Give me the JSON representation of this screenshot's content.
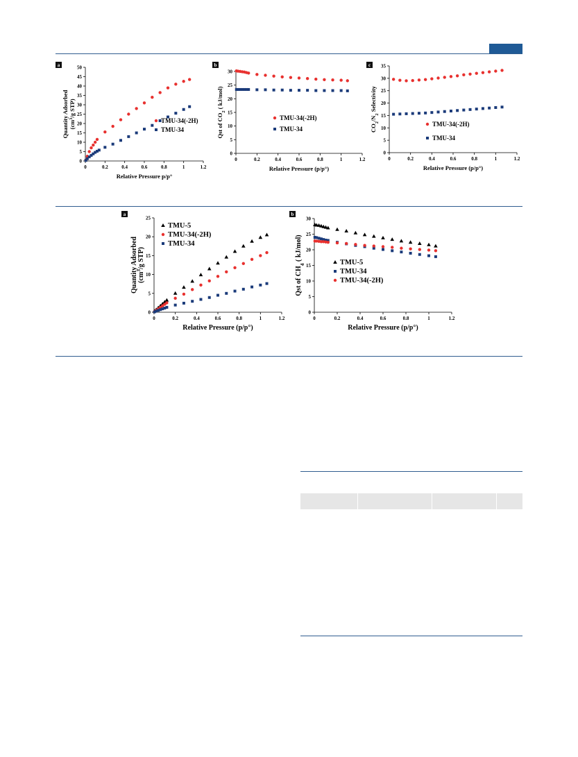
{
  "chart_data": [
    {
      "id": "p1",
      "type": "scatter",
      "panel_label": "a",
      "ylabel": "Quantity Adsorbed",
      "ylabel2": "(cm3/g STP)",
      "xlabel": "Relative Pressure p/p°",
      "xlim": [
        0,
        1.2
      ],
      "ylim": [
        0,
        50
      ],
      "xticks": [
        0,
        0.2,
        0.4,
        0.6,
        0.8,
        1,
        1.2
      ],
      "yticks": [
        0,
        5,
        10,
        15,
        20,
        25,
        30,
        35,
        40,
        45,
        50
      ],
      "legend_placement": "center-right",
      "series": [
        {
          "name": "TMU-34(-2H)",
          "marker": "circle",
          "color": "#e8312f",
          "x": [
            0.005,
            0.02,
            0.04,
            0.06,
            0.08,
            0.1,
            0.12,
            0.2,
            0.28,
            0.36,
            0.44,
            0.52,
            0.6,
            0.68,
            0.76,
            0.84,
            0.92,
            1.0,
            1.06
          ],
          "y": [
            0.5,
            2.5,
            5,
            7,
            8.5,
            10,
            11.5,
            15.5,
            18.5,
            22,
            25,
            28,
            31,
            34,
            36.5,
            39,
            41,
            42.5,
            43.5
          ]
        },
        {
          "name": "TMU-34",
          "marker": "square",
          "color": "#1b3b7a",
          "x": [
            0.005,
            0.02,
            0.04,
            0.06,
            0.08,
            0.1,
            0.12,
            0.14,
            0.2,
            0.28,
            0.36,
            0.44,
            0.52,
            0.6,
            0.68,
            0.76,
            0.84,
            0.92,
            1.0,
            1.06
          ],
          "y": [
            0.3,
            1.2,
            2.2,
            3.0,
            3.8,
            4.6,
            5.2,
            5.8,
            7.3,
            9.0,
            11,
            13,
            15,
            17,
            19,
            21.5,
            23.5,
            25.5,
            27.5,
            29
          ]
        }
      ]
    },
    {
      "id": "p2",
      "type": "scatter",
      "panel_label": "b",
      "ylabel": "Qst of CO2 ( kJ/mol)",
      "xlabel": "Relative Pressure (p/p°)",
      "xlim": [
        0,
        1.2
      ],
      "ylim": [
        0,
        30
      ],
      "xticks": [
        0,
        0.2,
        0.4,
        0.6,
        0.8,
        1,
        1.2
      ],
      "yticks": [
        0,
        5,
        10,
        15,
        20,
        25,
        30
      ],
      "legend_placement": "center",
      "series": [
        {
          "name": "TMU-34(-2H)",
          "marker": "circle",
          "color": "#e8312f",
          "x": [
            0.005,
            0.02,
            0.04,
            0.06,
            0.08,
            0.1,
            0.12,
            0.2,
            0.28,
            0.36,
            0.44,
            0.52,
            0.6,
            0.68,
            0.76,
            0.84,
            0.92,
            1.0,
            1.06
          ],
          "y": [
            30.2,
            30.1,
            30.0,
            29.9,
            29.8,
            29.6,
            29.4,
            28.9,
            28.6,
            28.3,
            28.0,
            27.8,
            27.6,
            27.4,
            27.2,
            27.0,
            26.9,
            26.8,
            26.6
          ]
        },
        {
          "name": "TMU-34",
          "marker": "square",
          "color": "#1b3b7a",
          "x": [
            0.005,
            0.02,
            0.04,
            0.06,
            0.08,
            0.1,
            0.12,
            0.2,
            0.28,
            0.36,
            0.44,
            0.52,
            0.6,
            0.68,
            0.76,
            0.84,
            0.92,
            1.0,
            1.06
          ],
          "y": [
            23.4,
            23.4,
            23.4,
            23.4,
            23.4,
            23.4,
            23.4,
            23.3,
            23.3,
            23.2,
            23.2,
            23.1,
            23.1,
            23.1,
            23.0,
            23.0,
            23.0,
            23.0,
            22.9
          ]
        }
      ]
    },
    {
      "id": "p3",
      "type": "scatter",
      "panel_label": "c",
      "ylabel": "CO2/N2 Selectivity",
      "xlabel": "Relative Pressure (p/p°)",
      "xlim": [
        0,
        1.2
      ],
      "ylim": [
        0,
        35
      ],
      "xticks": [
        0,
        0.2,
        0.4,
        0.6,
        0.8,
        1,
        1.2
      ],
      "yticks": [
        0,
        5,
        10,
        15,
        20,
        25,
        30,
        35
      ],
      "legend_placement": "bottom-left",
      "series": [
        {
          "name": "TMU-34(-2H)",
          "marker": "circle",
          "color": "#e8312f",
          "x": [
            0.04,
            0.1,
            0.16,
            0.22,
            0.28,
            0.34,
            0.4,
            0.46,
            0.52,
            0.58,
            0.64,
            0.7,
            0.76,
            0.82,
            0.88,
            0.94,
            1.0,
            1.06
          ],
          "y": [
            29.6,
            29.2,
            29.0,
            29.1,
            29.3,
            29.5,
            29.8,
            30.1,
            30.4,
            30.7,
            31.0,
            31.4,
            31.7,
            32.0,
            32.3,
            32.6,
            32.9,
            33.2
          ]
        },
        {
          "name": "TMU-34",
          "marker": "square",
          "color": "#1b3b7a",
          "x": [
            0.04,
            0.1,
            0.16,
            0.22,
            0.28,
            0.34,
            0.4,
            0.46,
            0.52,
            0.58,
            0.64,
            0.7,
            0.76,
            0.82,
            0.88,
            0.94,
            1.0,
            1.06
          ],
          "y": [
            15.5,
            15.6,
            15.7,
            15.8,
            15.9,
            16.0,
            16.2,
            16.4,
            16.6,
            16.8,
            17.0,
            17.2,
            17.4,
            17.6,
            17.8,
            18.0,
            18.2,
            18.4
          ]
        }
      ]
    },
    {
      "id": "p4",
      "type": "scatter",
      "panel_label": "a",
      "ylabel": "Quantity Adsorbed",
      "ylabel2": "(cm3/g STP)",
      "xlabel": "Relative Pressure (p/p°)",
      "xlim": [
        0,
        1.2
      ],
      "ylim": [
        0,
        25
      ],
      "xticks": [
        0,
        0.2,
        0.4,
        0.6,
        0.8,
        1,
        1.2
      ],
      "yticks": [
        0,
        5,
        10,
        15,
        20,
        25
      ],
      "legend_placement": "top-left",
      "series": [
        {
          "name": "TMU-5",
          "marker": "triangle",
          "color": "#000000",
          "x": [
            0.005,
            0.02,
            0.04,
            0.06,
            0.08,
            0.1,
            0.12,
            0.2,
            0.28,
            0.36,
            0.44,
            0.52,
            0.6,
            0.68,
            0.76,
            0.84,
            0.92,
            1.0,
            1.06
          ],
          "y": [
            0.3,
            0.7,
            1.2,
            1.7,
            2.2,
            2.7,
            3.2,
            5.0,
            6.6,
            8.2,
            9.9,
            11.5,
            13.0,
            14.6,
            16.1,
            17.5,
            18.8,
            19.8,
            20.5
          ]
        },
        {
          "name": "TMU-34(-2H)",
          "marker": "circle",
          "color": "#e8312f",
          "x": [
            0.005,
            0.02,
            0.04,
            0.06,
            0.08,
            0.1,
            0.12,
            0.2,
            0.28,
            0.36,
            0.44,
            0.52,
            0.6,
            0.68,
            0.76,
            0.84,
            0.92,
            1.0,
            1.06
          ],
          "y": [
            0.2,
            0.5,
            0.9,
            1.3,
            1.7,
            2.1,
            2.5,
            3.7,
            4.8,
            6.0,
            7.2,
            8.3,
            9.5,
            10.7,
            11.8,
            12.9,
            14.0,
            15.0,
            15.8
          ]
        },
        {
          "name": "TMU-34",
          "marker": "square",
          "color": "#1b3b7a",
          "x": [
            0.005,
            0.02,
            0.04,
            0.06,
            0.08,
            0.1,
            0.12,
            0.2,
            0.28,
            0.36,
            0.44,
            0.52,
            0.6,
            0.68,
            0.76,
            0.84,
            0.92,
            1.0,
            1.06
          ],
          "y": [
            0.1,
            0.3,
            0.5,
            0.7,
            0.9,
            1.1,
            1.3,
            1.9,
            2.4,
            2.9,
            3.4,
            3.9,
            4.5,
            5.0,
            5.6,
            6.1,
            6.7,
            7.2,
            7.6
          ]
        }
      ]
    },
    {
      "id": "p5",
      "type": "scatter",
      "panel_label": "b",
      "ylabel": "Qst of CH4 ( kJ/mol)",
      "xlabel": "Relative Pressure (p/p°)",
      "xlim": [
        0,
        1.2
      ],
      "ylim": [
        0,
        30
      ],
      "xticks": [
        0,
        0.2,
        0.4,
        0.6,
        0.8,
        1,
        1.2
      ],
      "yticks": [
        0,
        5,
        10,
        15,
        20,
        25,
        30
      ],
      "legend_placement": "center-left",
      "series": [
        {
          "name": "TMU-5",
          "marker": "triangle",
          "color": "#000000",
          "x": [
            0.005,
            0.02,
            0.04,
            0.06,
            0.08,
            0.1,
            0.12,
            0.2,
            0.28,
            0.36,
            0.44,
            0.52,
            0.6,
            0.68,
            0.76,
            0.84,
            0.92,
            1.0,
            1.06
          ],
          "y": [
            28.0,
            27.9,
            27.8,
            27.6,
            27.4,
            27.2,
            27.0,
            26.5,
            26.0,
            25.4,
            24.8,
            24.3,
            23.8,
            23.3,
            22.8,
            22.4,
            22.0,
            21.6,
            21.2
          ]
        },
        {
          "name": "TMU-34",
          "marker": "square",
          "color": "#1b3b7a",
          "x": [
            0.005,
            0.02,
            0.04,
            0.06,
            0.08,
            0.1,
            0.12,
            0.2,
            0.28,
            0.36,
            0.44,
            0.52,
            0.6,
            0.68,
            0.76,
            0.84,
            0.92,
            1.0,
            1.06
          ],
          "y": [
            24.0,
            23.9,
            23.7,
            23.5,
            23.3,
            23.1,
            23.0,
            22.4,
            21.9,
            21.4,
            21.0,
            20.5,
            20.1,
            19.7,
            19.3,
            18.9,
            18.5,
            18.1,
            17.8
          ]
        },
        {
          "name": "TMU-34(-2H)",
          "marker": "circle",
          "color": "#e8312f",
          "x": [
            0.005,
            0.02,
            0.04,
            0.06,
            0.08,
            0.1,
            0.12,
            0.2,
            0.28,
            0.36,
            0.44,
            0.52,
            0.6,
            0.68,
            0.76,
            0.84,
            0.92,
            1.0,
            1.06
          ],
          "y": [
            22.8,
            22.8,
            22.7,
            22.6,
            22.6,
            22.5,
            22.4,
            22.2,
            22.0,
            21.7,
            21.4,
            21.2,
            21.0,
            20.8,
            20.5,
            20.3,
            20.1,
            19.9,
            19.7
          ]
        }
      ]
    }
  ]
}
